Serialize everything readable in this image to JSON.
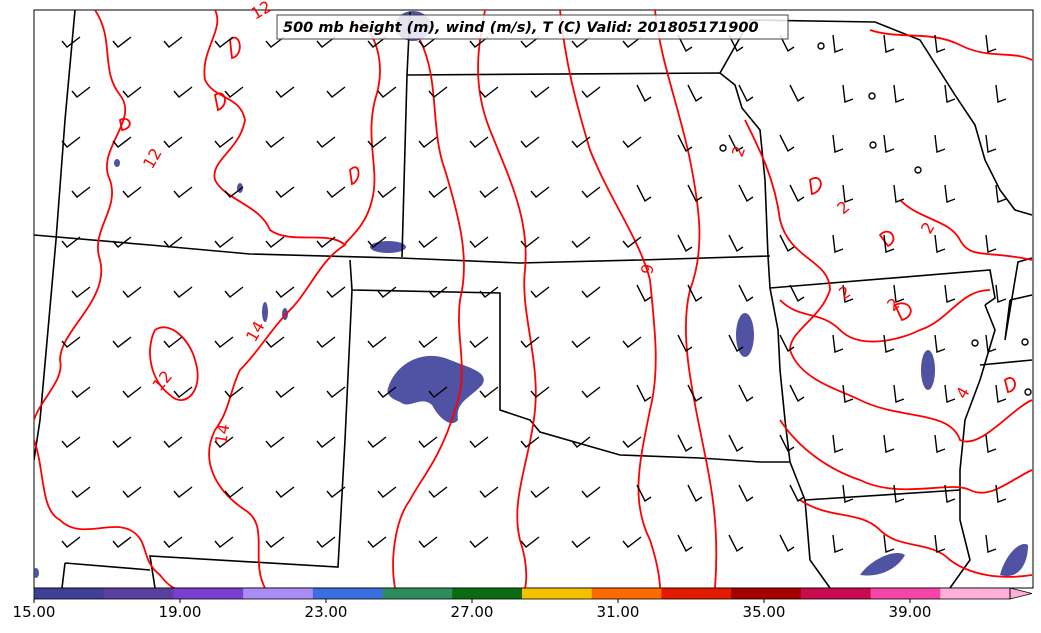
{
  "title": "500 mb height (m), wind (m/s), T (C) Valid: 201805171900",
  "contour_labels": [
    "12",
    "14",
    "12",
    "14",
    "12",
    "9",
    "2",
    "2",
    "2",
    "2",
    "4",
    "2"
  ],
  "colorbar": {
    "ticks": [
      "15.00",
      "19.00",
      "23.00",
      "27.00",
      "31.00",
      "35.00",
      "39.00"
    ],
    "colors": [
      "#3d3f99",
      "#5a3fa3",
      "#7b3fd0",
      "#a98cf5",
      "#3b6fe0",
      "#2e8c5a",
      "#0a6b10",
      "#f5c000",
      "#ff6a00",
      "#e31a00",
      "#a30000",
      "#c80a50",
      "#f545a8",
      "#ffb0d8"
    ]
  },
  "legend_colors": {
    "contour": "#ff0000",
    "shading": "#3d3f99",
    "borders": "#000000",
    "barbs": "#000000"
  }
}
